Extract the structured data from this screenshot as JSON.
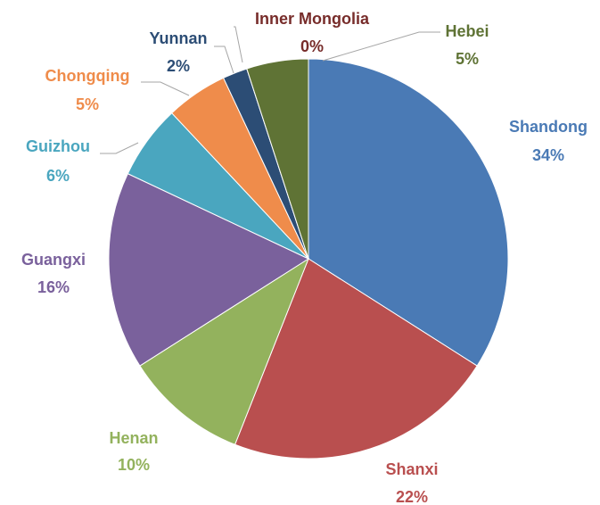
{
  "chart_data": {
    "type": "pie",
    "categories": [
      "Shandong",
      "Shanxi",
      "Henan",
      "Guangxi",
      "Guizhou",
      "Chongqing",
      "Yunnan",
      "Inner Mongolia",
      "Hebei"
    ],
    "values": [
      34,
      22,
      10,
      16,
      6,
      5,
      2,
      0,
      5
    ],
    "value_labels": [
      "34%",
      "22%",
      "10%",
      "16%",
      "6%",
      "5%",
      "2%",
      "0%",
      "5%"
    ],
    "colors": [
      "#4a7ab5",
      "#b94f4f",
      "#93b25d",
      "#7a619c",
      "#4aa6bf",
      "#ef8c4b",
      "#2c4d75",
      "#772c2a",
      "#5f7335"
    ]
  }
}
